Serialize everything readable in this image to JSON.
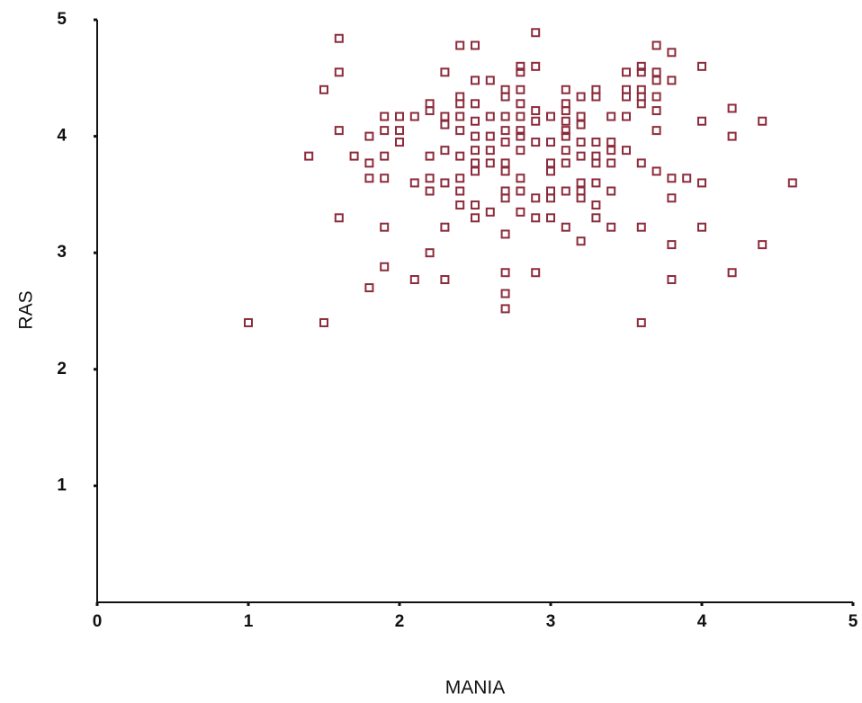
{
  "chart_data": {
    "type": "scatter",
    "xlabel": "MANIA",
    "ylabel": "RAS",
    "color": "#8c2b3b",
    "xlim": [
      0,
      5
    ],
    "ylim": [
      0,
      5
    ],
    "xticks": [
      0,
      1,
      2,
      3,
      4,
      5
    ],
    "yticks": [
      1,
      2,
      3,
      4,
      5
    ],
    "x": [
      1.0,
      1.5,
      1.6,
      1.6,
      1.5,
      1.6,
      1.4,
      1.6,
      1.7,
      1.8,
      1.8,
      1.8,
      1.8,
      1.9,
      1.9,
      1.9,
      1.9,
      1.9,
      1.9,
      2.0,
      2.0,
      2.0,
      2.1,
      2.1,
      2.1,
      2.2,
      2.2,
      2.2,
      2.2,
      2.2,
      2.2,
      2.3,
      2.3,
      2.3,
      2.3,
      2.3,
      2.3,
      2.3,
      2.4,
      2.4,
      2.4,
      2.4,
      2.4,
      2.4,
      2.4,
      2.4,
      2.4,
      2.5,
      2.5,
      2.5,
      2.5,
      2.5,
      2.5,
      2.5,
      2.5,
      2.5,
      2.5,
      2.6,
      2.6,
      2.6,
      2.6,
      2.6,
      2.6,
      2.7,
      2.7,
      2.7,
      2.7,
      2.7,
      2.7,
      2.7,
      2.7,
      2.7,
      2.7,
      2.7,
      2.7,
      2.7,
      2.8,
      2.8,
      2.8,
      2.8,
      2.8,
      2.8,
      2.8,
      2.8,
      2.8,
      2.8,
      2.8,
      2.9,
      2.9,
      2.9,
      2.9,
      2.9,
      2.9,
      2.9,
      2.9,
      3.0,
      3.0,
      3.0,
      3.0,
      3.0,
      3.0,
      3.0,
      3.1,
      3.1,
      3.1,
      3.1,
      3.1,
      3.1,
      3.1,
      3.1,
      3.1,
      3.1,
      3.2,
      3.2,
      3.2,
      3.2,
      3.2,
      3.2,
      3.2,
      3.2,
      3.2,
      3.3,
      3.3,
      3.3,
      3.3,
      3.3,
      3.3,
      3.3,
      3.3,
      3.4,
      3.4,
      3.4,
      3.4,
      3.4,
      3.4,
      3.5,
      3.5,
      3.5,
      3.5,
      3.5,
      3.6,
      3.6,
      3.6,
      3.6,
      3.6,
      3.6,
      3.6,
      3.6,
      3.7,
      3.7,
      3.7,
      3.7,
      3.7,
      3.7,
      3.7,
      3.8,
      3.8,
      3.8,
      3.8,
      3.8,
      3.8,
      3.9,
      4.0,
      4.0,
      4.0,
      4.0,
      4.2,
      4.2,
      4.2,
      4.4,
      4.4,
      4.6
    ],
    "y": [
      2.4,
      2.4,
      4.84,
      4.55,
      4.4,
      4.05,
      3.83,
      3.3,
      3.83,
      3.77,
      4.0,
      3.64,
      2.7,
      4.17,
      4.05,
      3.83,
      3.64,
      3.22,
      2.88,
      4.17,
      4.05,
      3.95,
      4.17,
      3.6,
      2.77,
      4.28,
      4.22,
      3.83,
      3.64,
      3.53,
      3.0,
      4.55,
      4.17,
      4.1,
      3.88,
      3.6,
      3.22,
      2.77,
      4.78,
      4.34,
      4.28,
      4.17,
      4.05,
      3.83,
      3.64,
      3.53,
      3.41,
      4.78,
      4.48,
      4.28,
      4.13,
      4.0,
      3.88,
      3.77,
      3.7,
      3.41,
      3.3,
      4.48,
      4.17,
      4.0,
      3.88,
      3.77,
      3.35,
      4.4,
      4.34,
      4.17,
      4.05,
      3.95,
      3.77,
      3.7,
      3.53,
      3.47,
      3.16,
      2.83,
      2.65,
      2.52,
      4.6,
      4.55,
      4.4,
      4.28,
      4.17,
      4.05,
      4.0,
      3.88,
      3.64,
      3.53,
      3.35,
      4.89,
      4.6,
      4.22,
      4.13,
      3.95,
      3.47,
      3.3,
      2.83,
      4.17,
      3.95,
      3.77,
      3.7,
      3.53,
      3.47,
      3.3,
      4.4,
      4.28,
      4.22,
      4.13,
      4.05,
      4.0,
      3.88,
      3.77,
      3.53,
      3.22,
      4.34,
      4.17,
      4.1,
      3.95,
      3.83,
      3.6,
      3.53,
      3.47,
      3.1,
      4.4,
      4.34,
      3.95,
      3.83,
      3.77,
      3.6,
      3.41,
      3.3,
      4.17,
      3.95,
      3.88,
      3.77,
      3.53,
      3.22,
      4.55,
      4.4,
      4.34,
      4.17,
      3.88,
      4.6,
      4.55,
      4.4,
      4.34,
      4.28,
      3.77,
      3.22,
      2.4,
      4.78,
      4.55,
      4.48,
      4.34,
      4.22,
      4.05,
      3.7,
      4.72,
      4.48,
      3.64,
      3.47,
      3.07,
      2.77,
      3.64,
      4.6,
      4.13,
      3.6,
      3.22,
      4.24,
      4.0,
      2.83,
      4.13,
      3.07,
      3.6
    ]
  }
}
